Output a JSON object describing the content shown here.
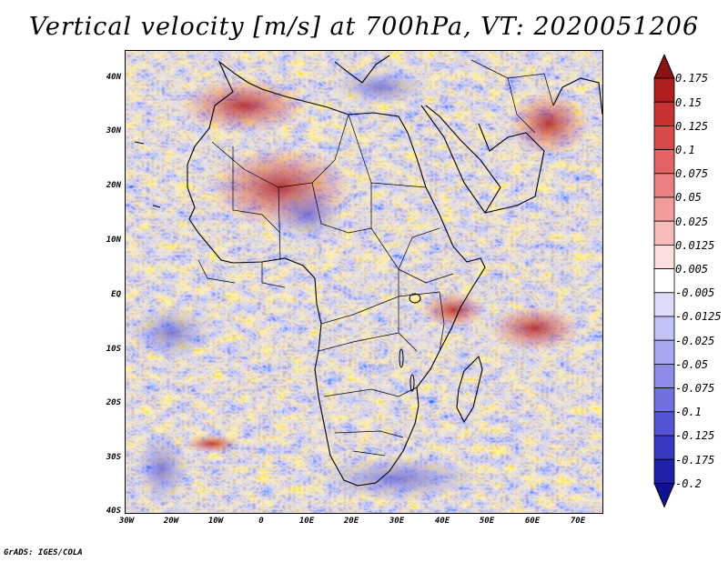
{
  "title": "Vertical velocity [m/s] at 700hPa, VT: 2020051206",
  "lat_labels": [
    "40N",
    "30N",
    "20N",
    "10N",
    "EQ",
    "10S",
    "20S",
    "30S",
    "40S"
  ],
  "lon_labels": [
    "30W",
    "20W",
    "10W",
    "0",
    "10E",
    "20E",
    "30E",
    "40E",
    "50E",
    "60E",
    "70E"
  ],
  "colorbar": {
    "levels": [
      "0.175",
      "0.15",
      "0.125",
      "0.1",
      "0.075",
      "0.05",
      "0.025",
      "0.0125",
      "0.005",
      "-0.005",
      "-0.0125",
      "-0.025",
      "-0.05",
      "-0.075",
      "-0.1",
      "-0.125",
      "-0.175",
      "-0.2"
    ],
    "colors": [
      "#8a1414",
      "#b01e1e",
      "#c83232",
      "#d84a4a",
      "#e26464",
      "#ea8080",
      "#f09c9c",
      "#f6bcbc",
      "#fbdede",
      "#ffffff",
      "#dcdcfb",
      "#c2c2f6",
      "#a8a8f0",
      "#8c8ce8",
      "#7070de",
      "#5454d2",
      "#3838c0",
      "#2020a8",
      "#101090"
    ]
  },
  "credit": "GrADS: IGES/COLA"
}
